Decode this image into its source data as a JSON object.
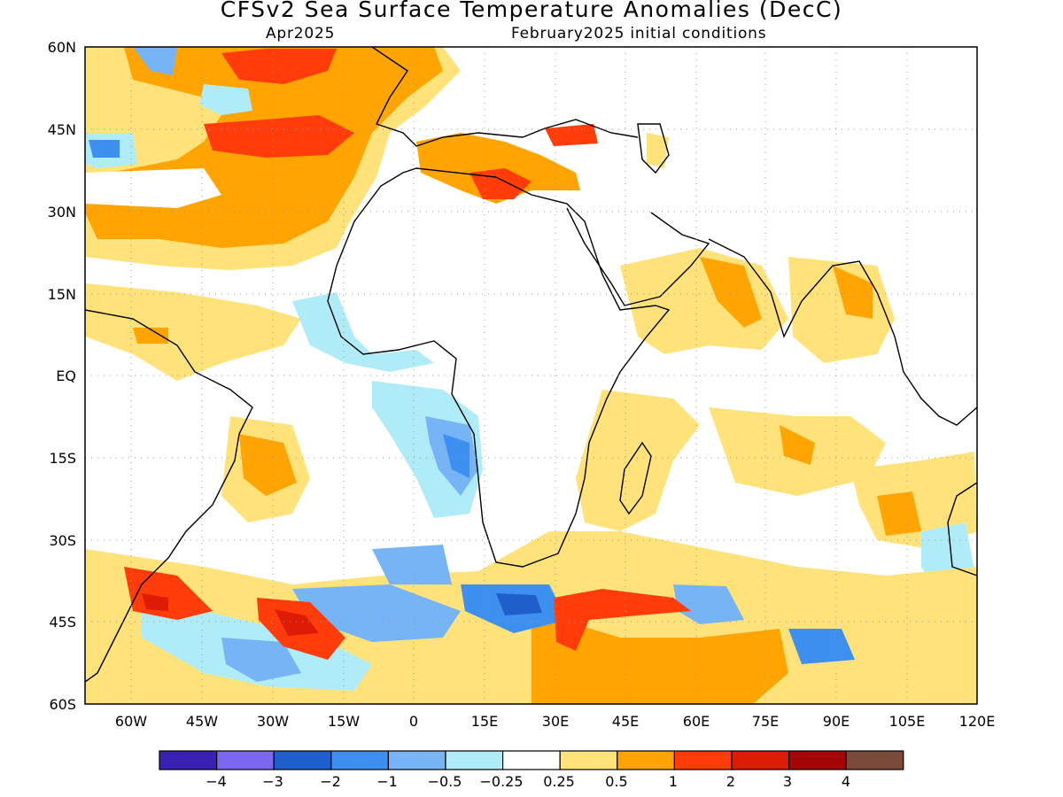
{
  "title": "CFSv2 Sea Surface Temperature Anomalies (DecC)",
  "forecast_month": "Apr2025",
  "initial_conditions": "February2025 initial conditions",
  "lat_labels": [
    "60N",
    "45N",
    "30N",
    "15N",
    "EQ",
    "15S",
    "30S",
    "45S",
    "60S"
  ],
  "lon_labels": [
    "60W",
    "45W",
    "30W",
    "15W",
    "0",
    "15E",
    "30E",
    "45E",
    "60E",
    "75E",
    "90E",
    "105E",
    "120E"
  ],
  "colorbar": {
    "colors": [
      "#3a21b4",
      "#7b68ee",
      "#1f5fcc",
      "#3d8ff0",
      "#77b4f5",
      "#b0ecf7",
      "#ffffff",
      "#ffe27a",
      "#ffa400",
      "#ff3c0a",
      "#de1b05",
      "#a60505",
      "#7a4a3a"
    ],
    "labels": [
      "−4",
      "−3",
      "−2",
      "−1",
      "−0.5",
      "−0.25",
      "0.25",
      "0.5",
      "1",
      "2",
      "3",
      "4"
    ]
  }
}
